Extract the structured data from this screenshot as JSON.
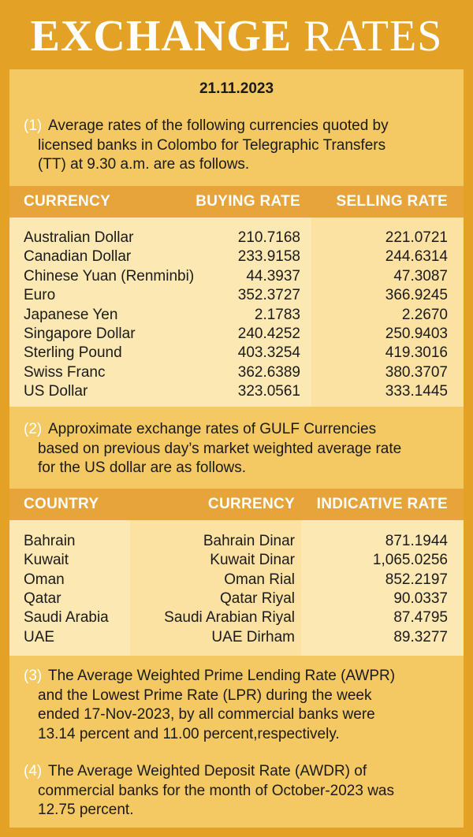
{
  "title": {
    "bold": "EXCHANGE",
    "light": "RATES"
  },
  "date": "21.11.2023",
  "note1": {
    "number": "(1)",
    "lines": [
      "Average rates of the following currencies quoted by",
      "licensed banks in Colombo for Telegraphic Transfers",
      "(TT) at 9.30 a.m. are as follows."
    ]
  },
  "table1": {
    "columns": [
      "CURRENCY",
      "BUYING RATE",
      "SELLING RATE"
    ],
    "rows": [
      [
        "Australian Dollar",
        "210.7168",
        "221.0721"
      ],
      [
        "Canadian Dollar",
        "233.9158",
        "244.6314"
      ],
      [
        "Chinese Yuan (Renminbi)",
        "44.3937",
        "47.3087"
      ],
      [
        "Euro",
        "352.3727",
        "366.9245"
      ],
      [
        "Japanese Yen",
        "2.1783",
        "2.2670"
      ],
      [
        "Singapore Dollar",
        "240.4252",
        "250.9403"
      ],
      [
        "Sterling Pound",
        "403.3254",
        "419.3016"
      ],
      [
        "Swiss Franc",
        "362.6389",
        "380.3707"
      ],
      [
        "US Dollar",
        "323.0561",
        "333.1445"
      ]
    ]
  },
  "note2": {
    "number": "(2)",
    "lines": [
      "Approximate exchange rates of GULF Currencies",
      "based on previous day’s market weighted average rate",
      "for the US dollar are as follows."
    ]
  },
  "table2": {
    "columns": [
      "COUNTRY",
      "CURRENCY",
      "INDICATIVE RATE"
    ],
    "rows": [
      [
        "Bahrain",
        "Bahrain Dinar",
        "871.1944"
      ],
      [
        "Kuwait",
        "Kuwait Dinar",
        "1,065.0256"
      ],
      [
        "Oman",
        "Oman Rial",
        "852.2197"
      ],
      [
        "Qatar",
        "Qatar Riyal",
        "90.0337"
      ],
      [
        "Saudi Arabia",
        "Saudi Arabian Riyal",
        "87.4795"
      ],
      [
        "UAE",
        "UAE Dirham",
        "89.3277"
      ]
    ]
  },
  "note3": {
    "number": "(3)",
    "lines": [
      "The Average Weighted Prime Lending Rate (AWPR)",
      "and the Lowest Prime Rate (LPR) during the week",
      "ended 17-Nov-2023, by all commercial banks were",
      "13.14 percent and 11.00 percent,respectively."
    ]
  },
  "note4": {
    "number": "(4)",
    "lines": [
      "The Average Weighted Deposit Rate (AWDR) of",
      "commercial banks for the month of October-2023 was",
      "12.75 percent."
    ]
  }
}
